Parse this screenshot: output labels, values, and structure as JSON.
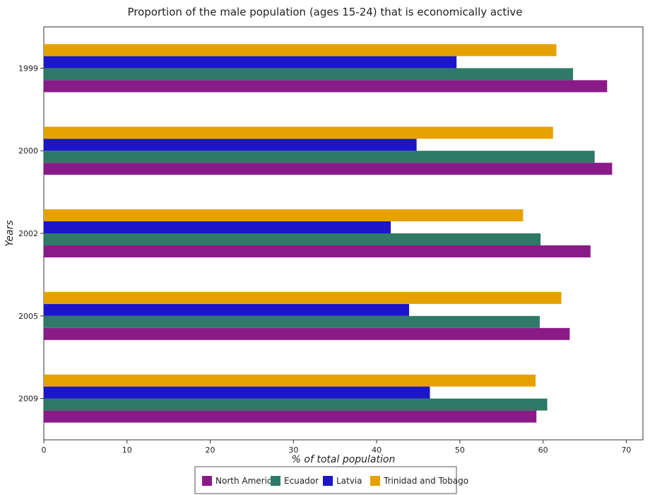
{
  "chart_data": {
    "type": "bar",
    "orientation": "horizontal",
    "title": "Proportion of the male population (ages 15-24) that is economically active",
    "xlabel": "% of total population",
    "ylabel": "Years",
    "xlim": [
      0,
      72
    ],
    "xticks": [
      0,
      10,
      20,
      30,
      40,
      50,
      60,
      70
    ],
    "categories": [
      "1999",
      "2000",
      "2002",
      "2005",
      "2009"
    ],
    "series": [
      {
        "name": "North America",
        "color": "#8B1A89",
        "values": [
          67.7,
          68.3,
          65.7,
          63.2,
          59.2
        ]
      },
      {
        "name": "Ecuador",
        "color": "#2E7A66",
        "values": [
          63.6,
          66.2,
          59.7,
          59.6,
          60.5
        ]
      },
      {
        "name": "Latvia",
        "color": "#1C16C8",
        "values": [
          49.6,
          44.8,
          41.7,
          43.9,
          46.4
        ]
      },
      {
        "name": "Trinidad and Tobago",
        "color": "#E6A100",
        "values": [
          61.6,
          61.2,
          57.6,
          62.2,
          59.1
        ]
      }
    ],
    "grid": false,
    "legend_position": "bottom"
  }
}
